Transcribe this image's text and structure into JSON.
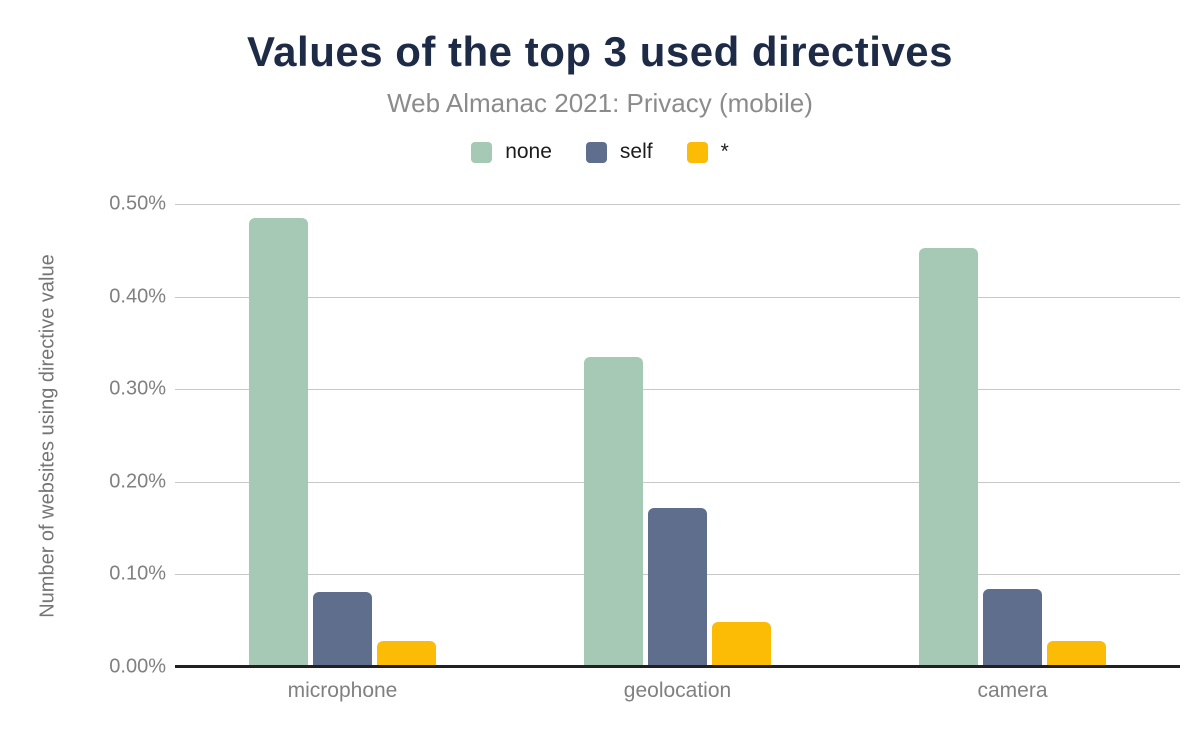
{
  "header": {
    "title": "Values of the top 3 used directives",
    "subtitle": "Web Almanac 2021: Privacy (mobile)"
  },
  "colors": {
    "background": "#ffffff",
    "title_text": "#1e2b47",
    "subtitle_text": "#8b8b8b",
    "axis_text": "#808080",
    "gridline": "#c8c8c8",
    "baseline": "#212121",
    "series_none": "#a6c9b6",
    "series_self": "#5f6e8c",
    "series_star": "#fcbb04"
  },
  "chart_data": {
    "type": "bar",
    "title": "Values of the top 3 used directives",
    "subtitle": "Web Almanac 2021: Privacy (mobile)",
    "categories": [
      "microphone",
      "geolocation",
      "camera"
    ],
    "series": [
      {
        "name": "none",
        "color": "#a6c9b6",
        "values": [
          0.485,
          0.335,
          0.453
        ]
      },
      {
        "name": "self",
        "color": "#5f6e8c",
        "values": [
          0.081,
          0.172,
          0.084
        ]
      },
      {
        "name": "*",
        "color": "#fcbb04",
        "values": [
          0.028,
          0.049,
          0.028
        ]
      }
    ],
    "xlabel": "",
    "ylabel": "Number of websites using directive value",
    "ylim": [
      0,
      0.5
    ],
    "ytick_values": [
      0,
      0.1,
      0.2,
      0.3,
      0.4,
      0.5
    ],
    "yticks": [
      "0.00%",
      "0.10%",
      "0.20%",
      "0.30%",
      "0.40%",
      "0.50%"
    ],
    "grid": true,
    "legend_position": "top"
  }
}
